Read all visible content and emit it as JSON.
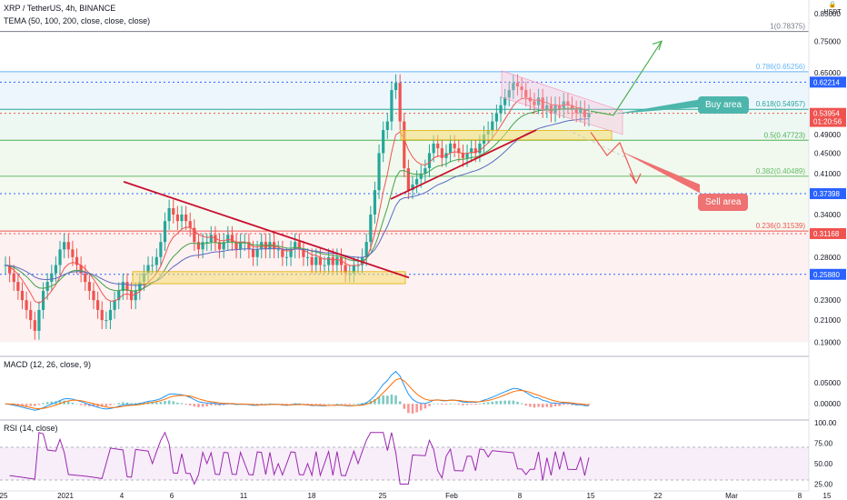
{
  "header": {
    "symbol_line": "XRP / TetherUS, 4h, BINANCE",
    "indicator_line": "TEMA (50, 100, 200, close, close, close)"
  },
  "panes": {
    "macd_label": "MACD (12, 26, close, 9)",
    "rsi_label": "RSI (14, close)"
  },
  "currency": {
    "symbol": "USDT",
    "unit_icon": "lock-icon"
  },
  "annotations": {
    "buy_area": "Buy area",
    "sell_area": "Sell area"
  },
  "colors": {
    "up": "#26a69a",
    "down": "#ef5350",
    "buy_callout": "#4db6ac",
    "sell_callout": "#ef7171",
    "trendline": "#c8102e",
    "zone": "#f7dc6f",
    "green_arrow": "#4caf50",
    "tema_red": "#ef5350",
    "tema_green": "#43a047",
    "tema_blue": "#5c6bc0",
    "rsi": "#9c27b0",
    "macd": "#2196f3",
    "signal": "#ff6d00"
  },
  "chart_data": {
    "type": "candlestick",
    "title": "XRP / TetherUS, 4h, BINANCE",
    "price_axis_ticks": [
      0.19,
      0.21,
      0.23,
      0.28,
      0.34,
      0.37398,
      0.41,
      0.45,
      0.49,
      0.58,
      0.65,
      0.75,
      0.85
    ],
    "price_axis_labels": [
      "0.19000",
      "0.21000",
      "0.23000",
      "0.28000",
      "0.34000",
      "",
      "0.41000",
      "0.45000",
      "0.49000",
      "",
      "0.65000",
      "0.75000",
      "0.85000"
    ],
    "ylim": [
      0.18,
      0.9
    ],
    "x_axis_labels": [
      "25",
      "2021",
      "4",
      "6",
      "11",
      "18",
      "25",
      "Feb",
      "8",
      "15",
      "22",
      "Mar",
      "8",
      "15"
    ],
    "fib_levels": [
      {
        "ratio": "1",
        "value": 0.78375,
        "label": "1(0.78375)"
      },
      {
        "ratio": "0.786",
        "value": 0.65256,
        "label": "0.786(0.65256)"
      },
      {
        "ratio": "0.618",
        "value": 0.54957,
        "label": "0.618(0.54957)"
      },
      {
        "ratio": "0.5",
        "value": 0.47723,
        "label": "0.5(0.47723)"
      },
      {
        "ratio": "0.382",
        "value": 0.40489,
        "label": "0.382(0.40489)"
      },
      {
        "ratio": "0.236",
        "value": 0.31539,
        "label": "0.236(0.31539)"
      }
    ],
    "price_tags": [
      {
        "value": 0.62214,
        "label": "0.62214",
        "color": "#2962ff"
      },
      {
        "value": 0.53954,
        "label": "0.53954",
        "color": "#ef5350"
      },
      {
        "value": 0.52,
        "label": "01:20:56",
        "color": "#ef5350"
      },
      {
        "value": 0.37398,
        "label": "0.37398",
        "color": "#2962ff"
      },
      {
        "value": 0.31168,
        "label": "0.31168",
        "color": "#ef5350"
      },
      {
        "value": 0.2588,
        "label": "0.25880",
        "color": "#2962ff"
      }
    ],
    "candles_close": [
      0.27,
      0.26,
      0.25,
      0.24,
      0.23,
      0.22,
      0.21,
      0.2,
      0.22,
      0.24,
      0.25,
      0.26,
      0.27,
      0.29,
      0.3,
      0.29,
      0.28,
      0.27,
      0.26,
      0.25,
      0.24,
      0.23,
      0.22,
      0.21,
      0.21,
      0.22,
      0.23,
      0.24,
      0.25,
      0.24,
      0.23,
      0.24,
      0.25,
      0.26,
      0.27,
      0.27,
      0.28,
      0.3,
      0.33,
      0.35,
      0.34,
      0.33,
      0.34,
      0.33,
      0.32,
      0.3,
      0.29,
      0.3,
      0.3,
      0.31,
      0.3,
      0.29,
      0.3,
      0.31,
      0.3,
      0.29,
      0.3,
      0.3,
      0.29,
      0.28,
      0.29,
      0.3,
      0.29,
      0.3,
      0.29,
      0.29,
      0.28,
      0.28,
      0.29,
      0.3,
      0.29,
      0.28,
      0.28,
      0.27,
      0.28,
      0.27,
      0.27,
      0.28,
      0.27,
      0.28,
      0.27,
      0.26,
      0.26,
      0.27,
      0.27,
      0.28,
      0.3,
      0.34,
      0.38,
      0.45,
      0.5,
      0.52,
      0.6,
      0.62,
      0.52,
      0.42,
      0.38,
      0.39,
      0.4,
      0.41,
      0.42,
      0.45,
      0.47,
      0.46,
      0.44,
      0.45,
      0.47,
      0.46,
      0.45,
      0.44,
      0.45,
      0.46,
      0.45,
      0.47,
      0.49,
      0.5,
      0.52,
      0.54,
      0.56,
      0.58,
      0.6,
      0.62,
      0.61,
      0.6,
      0.58,
      0.57,
      0.56,
      0.58,
      0.55,
      0.56,
      0.54,
      0.56,
      0.55,
      0.57,
      0.56,
      0.55,
      0.54,
      0.55,
      0.53,
      0.54
    ],
    "rsi": {
      "levels": [
        25,
        50,
        75,
        100
      ],
      "labels": [
        "25.00",
        "50.00",
        "75.00",
        "100.00"
      ],
      "ylim": [
        20,
        100
      ]
    },
    "macd": {
      "levels": [
        0,
        0.05
      ],
      "labels": [
        "0.00000",
        "0.05000"
      ],
      "ylim": [
        -0.03,
        0.1
      ]
    }
  }
}
